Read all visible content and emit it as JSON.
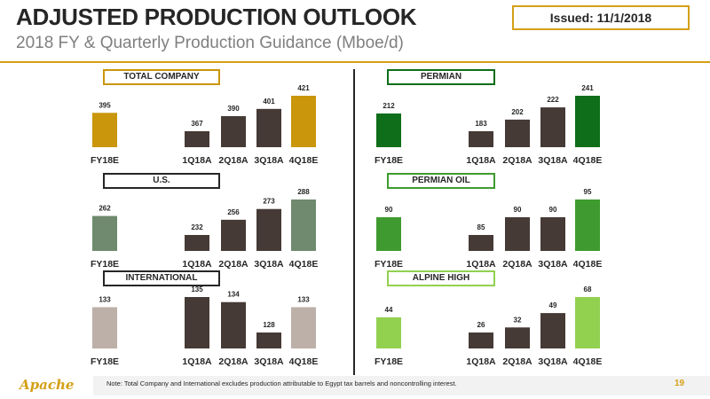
{
  "header": {
    "title": "ADJUSTED PRODUCTION OUTLOOK",
    "subtitle": "2018 FY & Quarterly Production Guidance (Mboe/d)",
    "issued": "Issued: 11/1/2018"
  },
  "footer": {
    "logo": "Apache",
    "note": "Note: Total Company and International excludes production attributable to Egypt tax barrels and noncontrolling interest.",
    "page": "19"
  },
  "colors": {
    "accent": "#d4a017",
    "dark_bar": "#453a35",
    "total_company": "#c9960c",
    "us": "#6f8a6e",
    "international": "#bdb0a8",
    "permian": "#0e6e1a",
    "permian_oil": "#3f9b2f",
    "alpine_high": "#92d050"
  },
  "chart_data": [
    {
      "type": "bar",
      "title": "TOTAL COMPANY",
      "categories": [
        "FY18E",
        "1Q18A",
        "2Q18A",
        "3Q18A",
        "4Q18E"
      ],
      "values": [
        395,
        367,
        390,
        401,
        421
      ],
      "highlight_color": "#c9960c",
      "label_border": "#c9960c"
    },
    {
      "type": "bar",
      "title": "PERMIAN",
      "categories": [
        "FY18E",
        "1Q18A",
        "2Q18A",
        "3Q18A",
        "4Q18E"
      ],
      "values": [
        212,
        183,
        202,
        222,
        241
      ],
      "highlight_color": "#0e6e1a",
      "label_border": "#0e6e1a"
    },
    {
      "type": "bar",
      "title": "U.S.",
      "categories": [
        "FY18E",
        "1Q18A",
        "2Q18A",
        "3Q18A",
        "4Q18E"
      ],
      "values": [
        262,
        232,
        256,
        273,
        288
      ],
      "highlight_color": "#6f8a6e",
      "label_border": "#262626"
    },
    {
      "type": "bar",
      "title": "PERMIAN OIL",
      "categories": [
        "FY18E",
        "1Q18A",
        "2Q18A",
        "3Q18A",
        "4Q18E"
      ],
      "values": [
        90,
        85,
        90,
        90,
        95
      ],
      "highlight_color": "#3f9b2f",
      "label_border": "#3f9b2f"
    },
    {
      "type": "bar",
      "title": "INTERNATIONAL",
      "categories": [
        "FY18E",
        "1Q18A",
        "2Q18A",
        "3Q18A",
        "4Q18E"
      ],
      "values": [
        133,
        135,
        134,
        128,
        133
      ],
      "highlight_color": "#bdb0a8",
      "label_border": "#262626"
    },
    {
      "type": "bar",
      "title": "ALPINE HIGH",
      "categories": [
        "FY18E",
        "1Q18A",
        "2Q18A",
        "3Q18A",
        "4Q18E"
      ],
      "values": [
        44,
        26,
        32,
        49,
        68
      ],
      "highlight_color": "#92d050",
      "label_border": "#92d050"
    }
  ]
}
